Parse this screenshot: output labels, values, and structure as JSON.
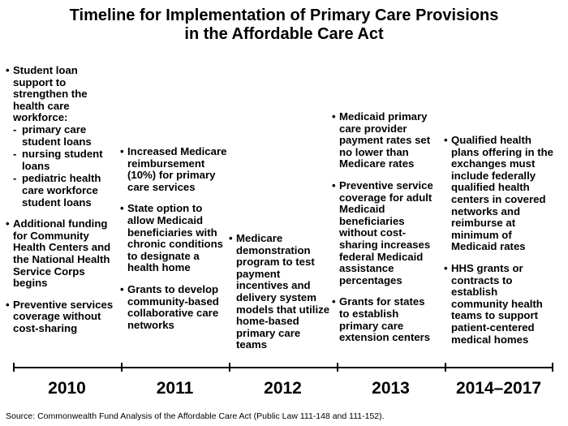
{
  "title": {
    "line1": "Timeline for Implementation of Primary Care Provisions",
    "line2": "in the Affordable Care Act"
  },
  "columns": [
    {
      "year": "2010",
      "items": [
        {
          "text": "Student loan support to strengthen the health care workforce:",
          "subitems": [
            "primary care student loans",
            "nursing student loans",
            "pediatric health care workforce student loans"
          ]
        },
        {
          "text": "Additional funding for Community Health Centers and the National Health Service Corps begins"
        },
        {
          "text": "Preventive services coverage without cost-sharing"
        }
      ]
    },
    {
      "year": "2011",
      "items": [
        {
          "text": "Increased Medicare reimbursement (10%) for primary care services"
        },
        {
          "text": "State option to allow Medicaid beneficiaries with chronic conditions to designate a health home"
        },
        {
          "text": "Grants to develop community-based collaborative care networks"
        }
      ]
    },
    {
      "year": "2012",
      "items": [
        {
          "text": "Medicare demonstration program to test payment incentives and delivery system models that utilize home-based primary care teams"
        }
      ]
    },
    {
      "year": "2013",
      "items": [
        {
          "text": "Medicaid primary care provider payment rates set no lower than Medicare rates"
        },
        {
          "text": "Preventive service coverage for adult Medicaid beneficiaries without cost-sharing increases federal Medicaid assistance percentages"
        },
        {
          "text": "Grants for states to establish primary care extension centers"
        }
      ]
    },
    {
      "year": "2014–2017",
      "items": [
        {
          "text": "Qualified health plans offering in the exchanges must include federally qualified health centers in covered networks and reimburse at minimum of Medicaid rates"
        },
        {
          "text": "HHS grants or contracts to establish community health teams to support patient-centered medical homes"
        }
      ]
    }
  ],
  "source": "Source: Commonwealth Fund Analysis of the Affordable Care Act (Public Law 111-148 and 111-152)."
}
